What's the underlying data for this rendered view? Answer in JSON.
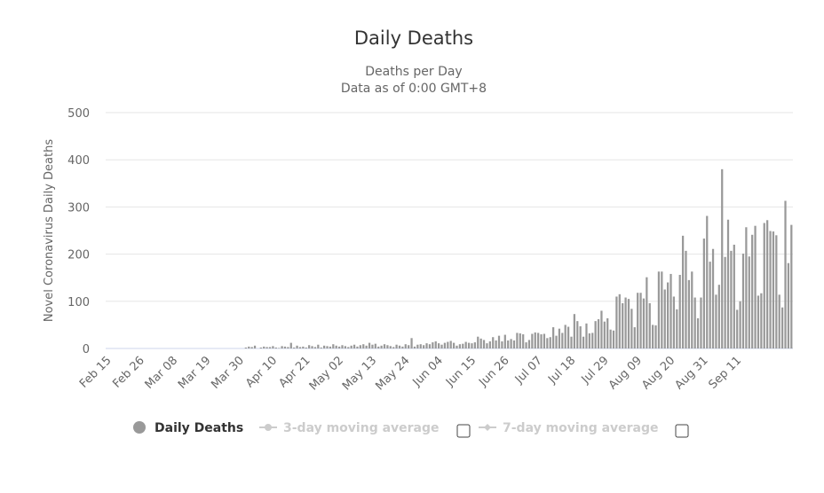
{
  "chart_data": {
    "type": "bar",
    "title": "Daily Deaths",
    "subtitle_lines": [
      "Deaths per Day",
      "Data as of 0:00 GMT+8"
    ],
    "ylabel": "Novel Coronavirus Daily Deaths",
    "ylim": [
      0,
      500
    ],
    "yticks": [
      0,
      100,
      200,
      300,
      400,
      500
    ],
    "grid": true,
    "series_color": "#999999",
    "x_tick_labels": [
      "Feb 15",
      "Feb 26",
      "Mar 08",
      "Mar 19",
      "Mar 30",
      "Apr 10",
      "Apr 21",
      "May 02",
      "May 13",
      "May 24",
      "Jun 04",
      "Jun 15",
      "Jun 26",
      "Jul 07",
      "Jul 18",
      "Jul 29",
      "Aug 09",
      "Aug 20",
      "Aug 31",
      "Sep 11"
    ],
    "x_start": "Feb 15",
    "series": [
      {
        "name": "Daily Deaths",
        "values": [
          0,
          0,
          0,
          0,
          0,
          0,
          0,
          0,
          0,
          0,
          0,
          0,
          0,
          0,
          0,
          0,
          0,
          0,
          0,
          0,
          0,
          0,
          0,
          0,
          0,
          0,
          0,
          0,
          0,
          0,
          0,
          0,
          0,
          0,
          0,
          0,
          0,
          0,
          0,
          0,
          0,
          0,
          0,
          0,
          0,
          0,
          2,
          4,
          3,
          6,
          0,
          2,
          4,
          3,
          3,
          5,
          2,
          1,
          5,
          4,
          3,
          12,
          2,
          6,
          3,
          4,
          2,
          7,
          5,
          3,
          8,
          2,
          6,
          5,
          4,
          9,
          6,
          4,
          7,
          5,
          3,
          6,
          8,
          4,
          7,
          9,
          6,
          12,
          8,
          10,
          4,
          6,
          9,
          7,
          5,
          3,
          8,
          6,
          4,
          9,
          7,
          22,
          4,
          8,
          9,
          7,
          11,
          9,
          13,
          15,
          11,
          8,
          12,
          14,
          16,
          12,
          6,
          9,
          10,
          14,
          12,
          11,
          13,
          25,
          21,
          18,
          11,
          15,
          24,
          17,
          27,
          15,
          29,
          17,
          20,
          17,
          33,
          32,
          30,
          13,
          18,
          31,
          34,
          33,
          30,
          31,
          22,
          24,
          45,
          27,
          42,
          33,
          50,
          46,
          25,
          73,
          58,
          47,
          25,
          53,
          32,
          33,
          58,
          62,
          80,
          57,
          64,
          40,
          38,
          110,
          115,
          96,
          108,
          105,
          84,
          45,
          118,
          118,
          106,
          151,
          96,
          50,
          49,
          163,
          163,
          125,
          140,
          158,
          110,
          83,
          156,
          239,
          207,
          145,
          163,
          108,
          64,
          108,
          233,
          281,
          184,
          211,
          114,
          135,
          380,
          194,
          273,
          207,
          220,
          82,
          100,
          201,
          257,
          195,
          241,
          260,
          112,
          117,
          266,
          272,
          249,
          248,
          240,
          114,
          87,
          313,
          181,
          262
        ]
      }
    ],
    "legend": {
      "placement": "bottom",
      "items": [
        {
          "label": "Daily Deaths",
          "active": true,
          "color": "#999999"
        },
        {
          "label": "3-day moving average",
          "active": false,
          "color": "#cccccc"
        },
        {
          "label": "7-day moving average",
          "active": false,
          "color": "#cccccc"
        }
      ]
    }
  }
}
